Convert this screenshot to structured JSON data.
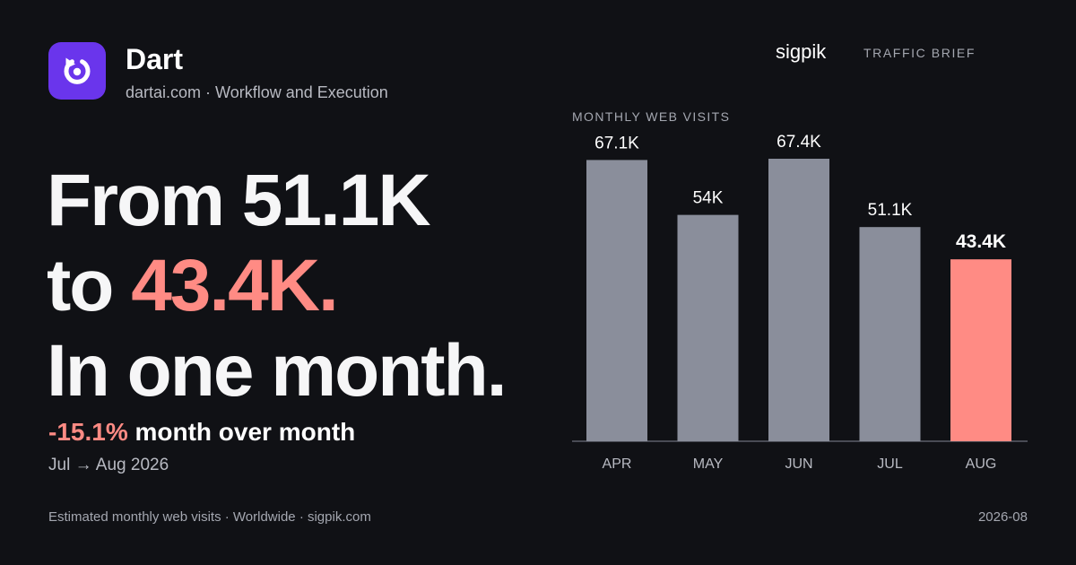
{
  "header": {
    "app_name": "Dart",
    "app_subtitle": "dartai.com · Workflow and Execution",
    "brand": "sigpik",
    "brief_label": "TRAFFIC BRIEF"
  },
  "headline": {
    "line1": "From 51.1K",
    "line2_prefix": "to ",
    "line2_accent": "43.4K.",
    "line3": "In one month."
  },
  "change": {
    "percent": "-15.1%",
    "text": " month over month",
    "range": "Jul → Aug 2026"
  },
  "footer": {
    "left": "Estimated monthly web visits · Worldwide · sigpik.com",
    "right": "2026-08"
  },
  "colors": {
    "background": "#101115",
    "bar": "#8a8e9b",
    "highlight": "#ff8b84",
    "logo": "#6a35ec"
  },
  "icons": {
    "logo": "dart-refresh-icon"
  },
  "chart_data": {
    "type": "bar",
    "title": "MONTHLY WEB VISITS",
    "categories": [
      "APR",
      "MAY",
      "JUN",
      "JUL",
      "AUG"
    ],
    "values": [
      67100,
      54000,
      67400,
      51100,
      43400
    ],
    "value_labels": [
      "67.1K",
      "54K",
      "67.4K",
      "51.1K",
      "43.4K"
    ],
    "highlight_category": "AUG",
    "ylim": [
      0,
      67400
    ],
    "grid": false
  }
}
